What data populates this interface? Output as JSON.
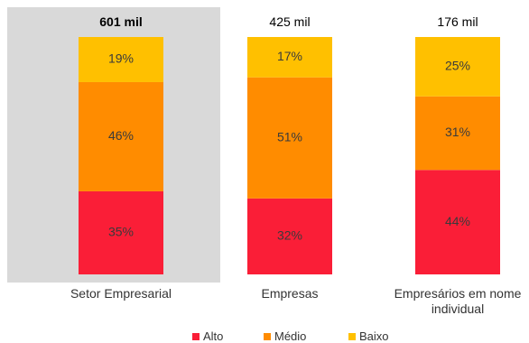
{
  "colors": {
    "Alto": "#fa1e37",
    "Médio": "#ff8c00",
    "Baixo": "#ffc000",
    "highlight_bg": "#d9d9d9"
  },
  "chart_data": {
    "type": "bar",
    "stacked": true,
    "unit": "%",
    "ylim": [
      0,
      100
    ],
    "grid": false,
    "legend_position": "bottom",
    "highlighted_category": "Setor Empresarial",
    "categories": [
      "Setor Empresarial",
      "Empresas",
      "Empresários em nome individual"
    ],
    "category_display": [
      [
        "Setor Empresarial"
      ],
      [
        "Empresas"
      ],
      [
        "Empresários em nome",
        "individual"
      ]
    ],
    "totals": [
      "601 mil",
      "425 mil",
      "176 mil"
    ],
    "series": [
      {
        "name": "Alto",
        "values": [
          35,
          32,
          44
        ]
      },
      {
        "name": "Médio",
        "values": [
          46,
          51,
          31
        ]
      },
      {
        "name": "Baixo",
        "values": [
          19,
          17,
          25
        ]
      }
    ],
    "segment_labels": [
      [
        "35%",
        "32%",
        "44%"
      ],
      [
        "46%",
        "51%",
        "31%"
      ],
      [
        "19%",
        "17%",
        "25%"
      ]
    ]
  }
}
